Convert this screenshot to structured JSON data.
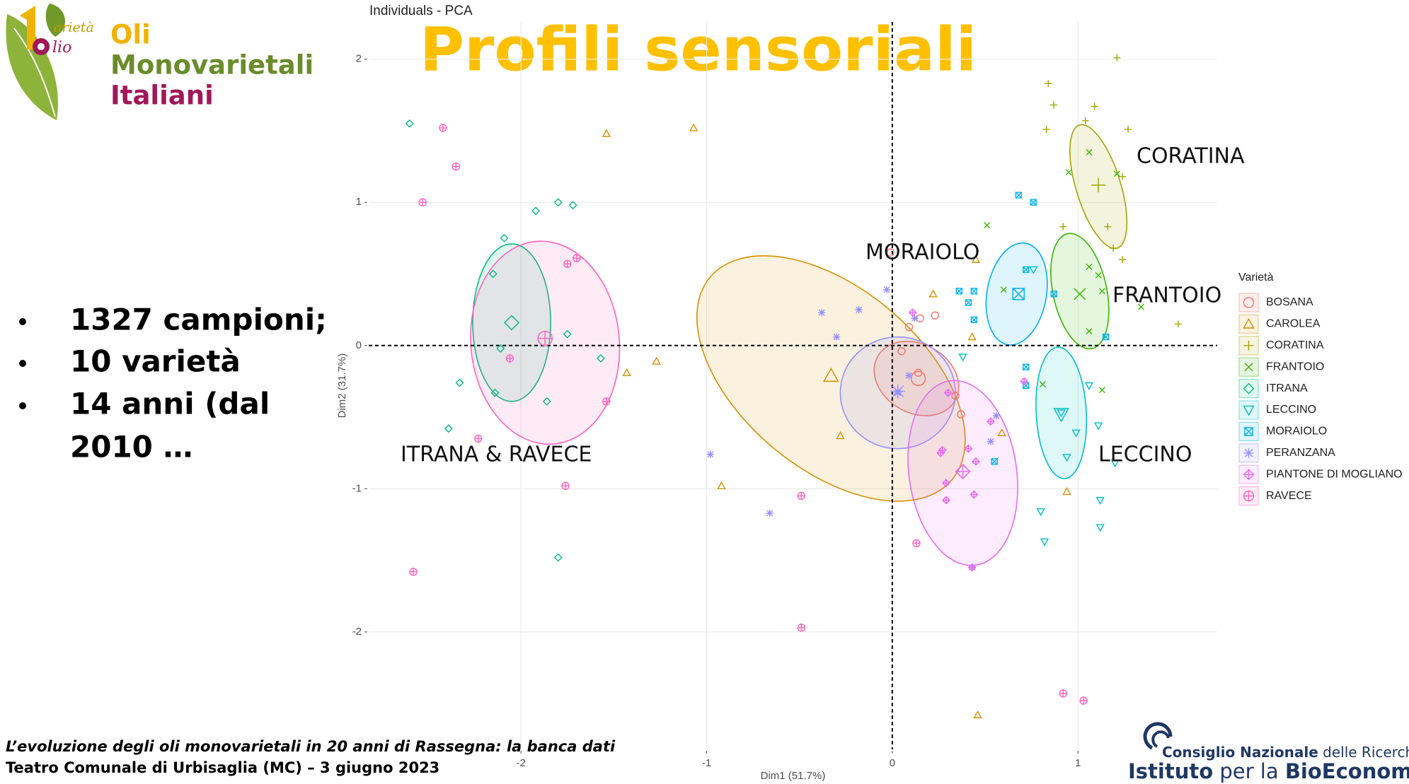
{
  "header": {
    "logo_script": [
      "arietà",
      "lio"
    ],
    "logo_lines": [
      "Oli",
      "Monovarietali",
      "Italiani"
    ],
    "title": "Profili sensoriali"
  },
  "bullets": [
    "1327 campioni;",
    "10 varietà",
    "14 anni (dal",
    "2010 …"
  ],
  "footer": {
    "lines": [
      "L’evoluzione degli oli monovarietali in 20 anni di Rassegna: la banca dati",
      "Teatro Comunale di Urbisaglia (MC) – 3 giugno 2023"
    ]
  },
  "institute": {
    "line1": [
      "Consiglio Nazionale",
      "delle Ricerche"
    ],
    "line2": [
      "Istituto",
      "per la",
      "BioEconomia"
    ]
  },
  "chart_data": {
    "type": "scatter",
    "title": "Individuals - PCA",
    "xlabel": "Dim1 (51.7%)",
    "ylabel": "Dim2 (31.7%)",
    "legend_title": "Varietà",
    "xlim": [
      -2.82,
      1.75
    ],
    "ylim": [
      -2.82,
      2.26
    ],
    "xticks": [
      -2,
      -1,
      0,
      1
    ],
    "yticks": [
      -2,
      -1,
      0,
      1,
      2
    ],
    "grid": true,
    "annotations": [
      "CORATINA",
      "MORAIOLO",
      "FRANTOIO",
      "LECCINO",
      "ITRANA & RAVECE"
    ],
    "series": [
      {
        "name": "BOSANA",
        "color": "#F8766D",
        "shape": "circle",
        "x": [
          0.15,
          0.14,
          0.34,
          0.23,
          0.05,
          0.37,
          0.09,
          -0.01
        ],
        "y": [
          0.19,
          -0.19,
          -0.35,
          0.21,
          -0.04,
          -0.48,
          0.13,
          0.65
        ],
        "centroid": {
          "x": 0.14,
          "y": -0.23
        },
        "ellipse": {
          "cx": 0.13,
          "cy": -0.23,
          "rx": 0.24,
          "ry": 0.24,
          "angle": 30
        }
      },
      {
        "name": "CAROLEA",
        "color": "#D89000",
        "shape": "triangle",
        "x": [
          -1.54,
          -1.07,
          -1.43,
          -1.27,
          -0.92,
          -0.28,
          0.45,
          0.43,
          0.59,
          0.94,
          0.46,
          0.22
        ],
        "y": [
          1.48,
          1.52,
          -0.19,
          -0.11,
          -0.98,
          -0.63,
          0.6,
          0.06,
          -0.61,
          -1.02,
          -2.58,
          0.36
        ],
        "centroid": {
          "x": -0.33,
          "y": -0.21
        },
        "ellipse": {
          "cx": -0.33,
          "cy": -0.23,
          "rx": 0.85,
          "ry": 0.63,
          "angle": 40
        }
      },
      {
        "name": "CORATINA",
        "color": "#A3A500",
        "shape": "plus",
        "x": [
          0.84,
          1.21,
          0.87,
          1.09,
          0.83,
          1.04,
          1.27,
          1.24,
          0.92,
          1.16,
          1.24,
          1.19,
          1.54
        ],
        "y": [
          1.83,
          2.01,
          1.68,
          1.67,
          1.51,
          1.57,
          1.51,
          1.18,
          0.83,
          0.83,
          0.6,
          0.68,
          0.15
        ],
        "centroid": {
          "x": 1.11,
          "y": 1.12
        },
        "ellipse": {
          "cx": 1.11,
          "cy": 1.11,
          "rx": 0.12,
          "ry": 0.45,
          "angle": -17
        }
      },
      {
        "name": "FRANTOIO",
        "color": "#39B600",
        "shape": "cross",
        "x": [
          0.51,
          0.95,
          1.06,
          1.21,
          1.06,
          1.11,
          1.13,
          1.06,
          1.34,
          1.13,
          0.6,
          0.81
        ],
        "y": [
          0.84,
          1.21,
          1.35,
          1.2,
          0.55,
          0.49,
          0.38,
          0.1,
          0.27,
          -0.31,
          0.39,
          -0.27
        ],
        "centroid": {
          "x": 1.01,
          "y": 0.36
        },
        "ellipse": {
          "cx": 1.01,
          "cy": 0.38,
          "rx": 0.145,
          "ry": 0.41,
          "angle": -12
        }
      },
      {
        "name": "ITRANA",
        "color": "#00BF7D",
        "shape": "diamond",
        "x": [
          -2.6,
          -1.92,
          -1.8,
          -1.72,
          -2.09,
          -2.15,
          -1.75,
          -1.57,
          -2.33,
          -1.86,
          -2.14,
          -2.39,
          -1.8,
          -2.11
        ],
        "y": [
          1.55,
          0.94,
          1.0,
          0.98,
          0.75,
          0.5,
          0.08,
          -0.09,
          -0.26,
          -0.39,
          -0.33,
          -0.58,
          -1.48,
          -0.02
        ],
        "centroid": {
          "x": -2.05,
          "y": 0.16
        },
        "ellipse": {
          "cx": -2.05,
          "cy": 0.16,
          "rx": 0.21,
          "ry": 0.55,
          "angle": 0
        }
      },
      {
        "name": "LECCINO",
        "color": "#00BFC4",
        "shape": "triangle-down",
        "x": [
          0.76,
          0.38,
          1.06,
          1.11,
          0.99,
          0.94,
          0.8,
          0.82,
          1.12,
          1.12,
          1.2,
          0.91
        ],
        "y": [
          0.53,
          -0.08,
          -0.28,
          -0.56,
          -0.61,
          -0.78,
          -1.16,
          -1.37,
          -1.08,
          -1.27,
          -0.82,
          -0.47
        ],
        "centroid": {
          "x": 0.91,
          "y": -0.48
        },
        "ellipse": {
          "cx": 0.91,
          "cy": -0.47,
          "rx": 0.135,
          "ry": 0.46,
          "angle": -3
        }
      },
      {
        "name": "MORAIOLO",
        "color": "#00B0F6",
        "shape": "square-cross",
        "x": [
          0.68,
          0.76,
          0.36,
          0.44,
          0.41,
          0.44,
          0.72,
          0.87,
          0.72,
          0.72,
          1.15,
          0.55
        ],
        "y": [
          1.05,
          1.0,
          0.38,
          0.38,
          0.3,
          0.18,
          0.53,
          0.36,
          -0.15,
          -0.28,
          0.06,
          -0.81
        ],
        "centroid": {
          "x": 0.68,
          "y": 0.36
        },
        "ellipse": {
          "cx": 0.67,
          "cy": 0.36,
          "rx": 0.16,
          "ry": 0.36,
          "angle": 10
        }
      },
      {
        "name": "PERANZANA",
        "color": "#9590FF",
        "shape": "asterisk",
        "x": [
          -0.38,
          -0.18,
          -0.3,
          -0.03,
          0.09,
          0.03,
          0.56,
          0.53,
          -0.98,
          -0.66,
          0.43,
          0.12
        ],
        "y": [
          0.23,
          0.25,
          0.06,
          0.39,
          -0.21,
          -0.33,
          -0.49,
          -0.67,
          -0.76,
          -1.17,
          -1.55,
          0.19
        ],
        "centroid": {
          "x": 0.03,
          "y": -0.32
        },
        "ellipse": {
          "cx": 0.03,
          "cy": -0.33,
          "rx": 0.31,
          "ry": 0.39,
          "angle": 0
        }
      },
      {
        "name": "PIANTONE DI MOGLIANO",
        "color": "#E76BF3",
        "shape": "diamond-plus",
        "x": [
          0.11,
          0.3,
          0.41,
          0.29,
          0.29,
          0.44,
          0.26,
          0.71,
          0.53,
          0.43,
          0.45,
          0.27
        ],
        "y": [
          0.23,
          -0.33,
          -0.72,
          -0.96,
          -1.08,
          -1.04,
          -0.75,
          -0.25,
          -0.53,
          -1.55,
          -0.81,
          -0.73
        ],
        "centroid": {
          "x": 0.38,
          "y": -0.88
        },
        "ellipse": {
          "cx": 0.38,
          "cy": -0.89,
          "rx": 0.29,
          "ry": 0.65,
          "angle": -8
        }
      },
      {
        "name": "RAVECE",
        "color": "#FF62BC",
        "shape": "circle-plus",
        "x": [
          -2.42,
          -2.35,
          -2.53,
          -1.7,
          -1.75,
          -2.06,
          -1.54,
          -1.76,
          -2.23,
          -2.58,
          -0.49,
          0.13,
          0.92,
          1.03,
          -0.49
        ],
        "y": [
          1.52,
          1.25,
          1.0,
          0.61,
          0.57,
          -0.09,
          -0.39,
          -0.98,
          -0.65,
          -1.58,
          -1.05,
          -1.38,
          -2.43,
          -2.48,
          -1.97
        ],
        "centroid": {
          "x": -1.87,
          "y": 0.05
        },
        "ellipse": {
          "cx": -1.87,
          "cy": 0.02,
          "rx": 0.4,
          "ry": 0.71,
          "angle": -5
        }
      }
    ]
  }
}
